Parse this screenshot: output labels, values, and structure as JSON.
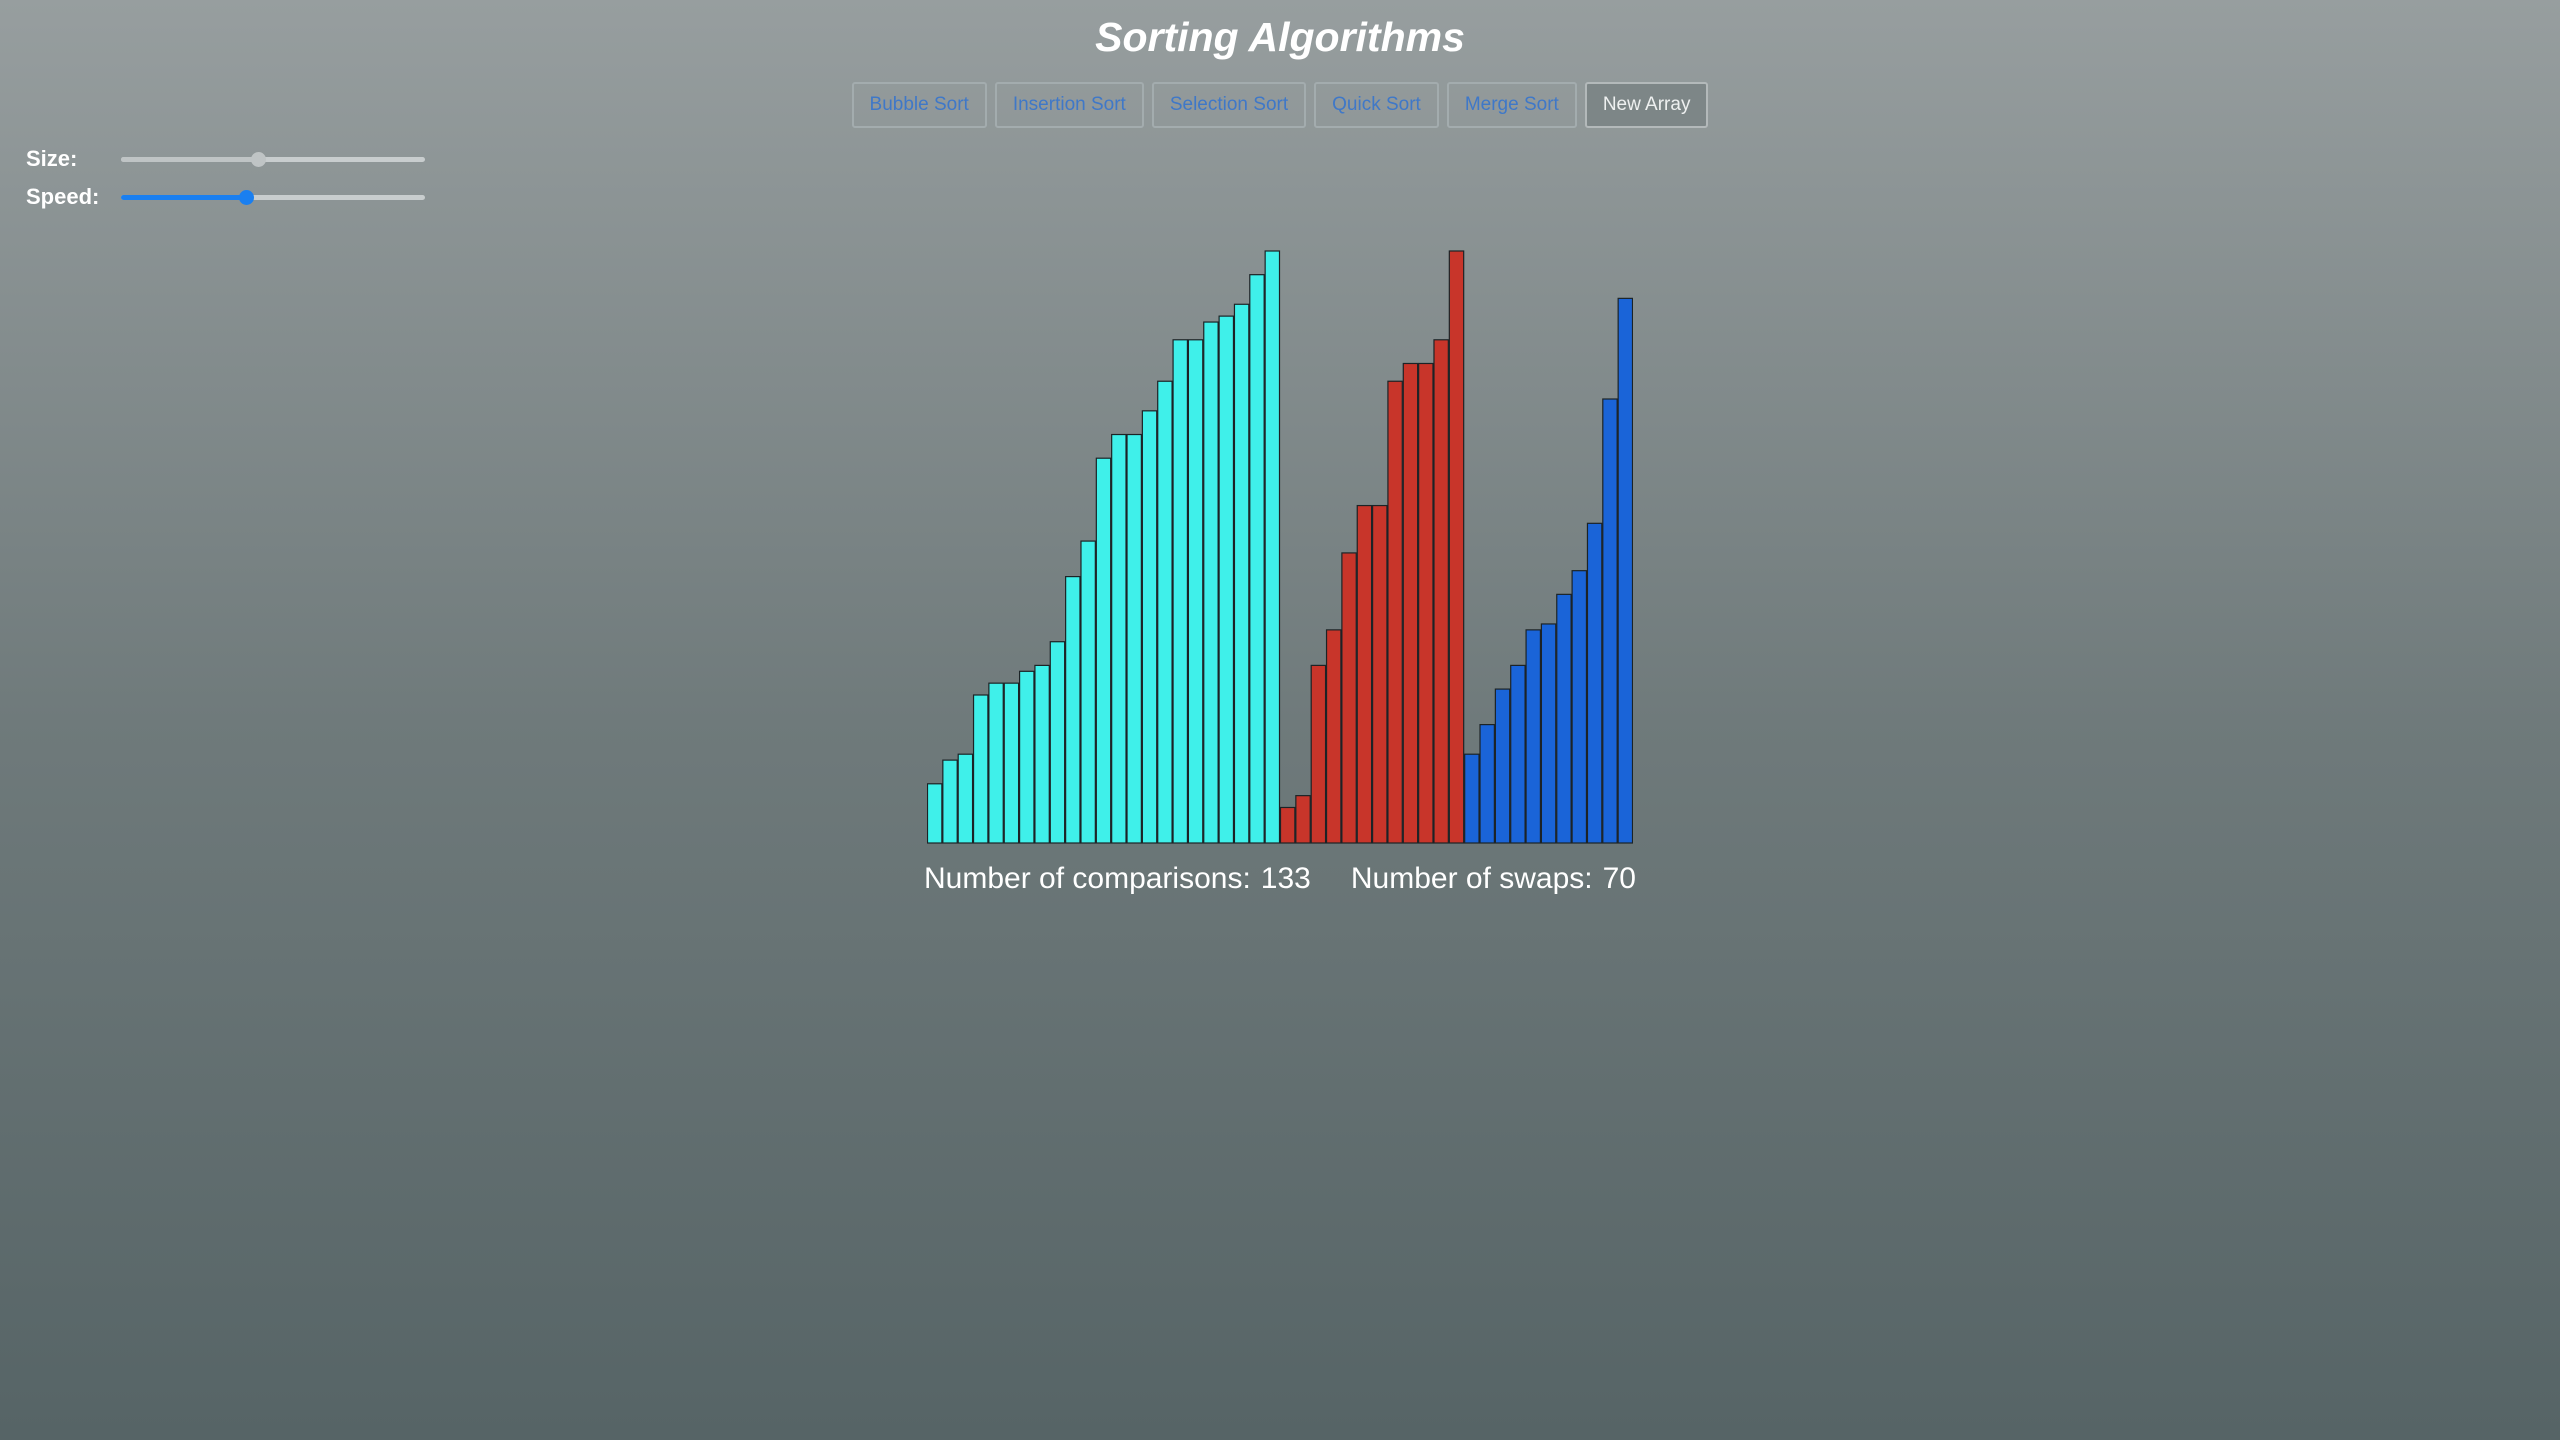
{
  "header": {
    "title": "Sorting Algorithms"
  },
  "toolbar": {
    "buttons": [
      {
        "label": "Bubble Sort"
      },
      {
        "label": "Insertion Sort"
      },
      {
        "label": "Selection Sort"
      },
      {
        "label": "Quick Sort"
      },
      {
        "label": "Merge Sort"
      },
      {
        "label": "New Array"
      }
    ]
  },
  "controls": {
    "size": {
      "label": "Size:",
      "value_fraction": 0.45
    },
    "speed": {
      "label": "Speed:",
      "value_fraction": 0.41
    }
  },
  "stats": {
    "comparisons_label": "Number of comparisons:",
    "comparisons_value": "133",
    "swaps_label": "Number of swaps:",
    "swaps_value": "70"
  },
  "colors": {
    "sorted": "#3ff0ea",
    "active": "#c8352a",
    "unsorted": "#1a64d8",
    "slider_accent": "#1a7ff0",
    "slider_inactive": "#bfc4c5"
  },
  "chart_data": {
    "type": "bar",
    "title": "",
    "xlabel": "",
    "ylabel": "",
    "ylim": [
      0,
      100
    ],
    "values": [
      10,
      14,
      15,
      25,
      27,
      27,
      29,
      30,
      34,
      45,
      51,
      65,
      69,
      69,
      73,
      78,
      85,
      85,
      88,
      89,
      91,
      96,
      100,
      6,
      8,
      30,
      36,
      49,
      57,
      57,
      78,
      81,
      81,
      85,
      100,
      15,
      20,
      26,
      30,
      36,
      37,
      42,
      46,
      54,
      75,
      92
    ],
    "states": [
      "sorted",
      "sorted",
      "sorted",
      "sorted",
      "sorted",
      "sorted",
      "sorted",
      "sorted",
      "sorted",
      "sorted",
      "sorted",
      "sorted",
      "sorted",
      "sorted",
      "sorted",
      "sorted",
      "sorted",
      "sorted",
      "sorted",
      "sorted",
      "sorted",
      "sorted",
      "sorted",
      "active",
      "active",
      "active",
      "active",
      "active",
      "active",
      "active",
      "active",
      "active",
      "active",
      "active",
      "active",
      "unsorted",
      "unsorted",
      "unsorted",
      "unsorted",
      "unsorted",
      "unsorted",
      "unsorted",
      "unsorted",
      "unsorted",
      "unsorted",
      "unsorted"
    ]
  }
}
